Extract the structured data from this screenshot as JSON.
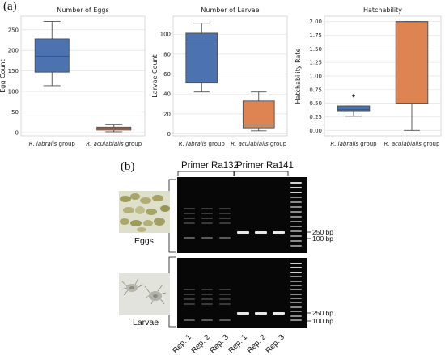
{
  "figure": {
    "panel_a_label": "(a)",
    "panel_b_label": "(b)"
  },
  "chart_data": [
    {
      "type": "box",
      "title": "Number of Eggs",
      "ylabel": "Egg Count",
      "categories": [
        "R. labralis group",
        "R. aculabialis group"
      ],
      "yticks": [
        0,
        50,
        100,
        150,
        200,
        250
      ],
      "ylim": [
        -8,
        283
      ],
      "boxes": [
        {
          "category": "R. labralis group",
          "min": 114,
          "q1": 147,
          "median": 186,
          "q3": 228,
          "max": 270,
          "outliers": [],
          "color": "#4c72b0"
        },
        {
          "category": "R. aculabialis group",
          "min": 2,
          "q1": 6,
          "median": 10,
          "q3": 13,
          "max": 20,
          "outliers": [],
          "color": "#dd8452"
        }
      ],
      "grid": true
    },
    {
      "type": "box",
      "title": "Number of Larvae",
      "ylabel": "Larvae Count",
      "categories": [
        "R. labralis group",
        "R. aculabialis group"
      ],
      "yticks": [
        0,
        20,
        40,
        60,
        80,
        100
      ],
      "ylim": [
        -2,
        118
      ],
      "boxes": [
        {
          "category": "R. labralis group",
          "min": 42,
          "q1": 51,
          "median": 94,
          "q3": 101,
          "max": 111,
          "outliers": [],
          "color": "#4c72b0"
        },
        {
          "category": "R. aculabialis group",
          "min": 3,
          "q1": 6,
          "median": 9,
          "q3": 33,
          "max": 42,
          "outliers": [],
          "color": "#dd8452"
        }
      ],
      "grid": true
    },
    {
      "type": "box",
      "title": "Hatchability",
      "ylabel": "Hatchability Rate",
      "categories": [
        "R. labralis group",
        "R. aculabialis group"
      ],
      "yticks": [
        0.0,
        0.25,
        0.5,
        0.75,
        1.0,
        1.25,
        1.5,
        1.75,
        2.0
      ],
      "ytick_labels": [
        "0.00",
        "0.25",
        "0.50",
        "0.75",
        "1.00",
        "1.25",
        "1.50",
        "1.75",
        "2.00"
      ],
      "ylim": [
        -0.1,
        2.1
      ],
      "boxes": [
        {
          "category": "R. labralis group",
          "min": 0.26,
          "q1": 0.36,
          "median": 0.38,
          "q3": 0.45,
          "max": 0.45,
          "outliers": [
            0.64
          ],
          "color": "#4c72b0"
        },
        {
          "category": "R. aculabialis group",
          "min": 0.0,
          "q1": 0.5,
          "median": 2.0,
          "q3": 2.0,
          "max": 2.0,
          "outliers": [],
          "color": "#dd8452"
        }
      ],
      "grid": true
    }
  ],
  "gel": {
    "primer_left": "Primer Ra132",
    "primer_right": "Primer Ra141",
    "rows": [
      {
        "sample": "Eggs",
        "marker_labels": [
          "250 bp",
          "100 bp"
        ]
      },
      {
        "sample": "Larvae",
        "marker_labels": [
          "250 bp",
          "100 bp"
        ]
      }
    ],
    "lanes": [
      "Rep. 1",
      "Rep. 2",
      "Rep. 3",
      "Rep. 1",
      "Rep. 2",
      "Rep. 3"
    ]
  }
}
